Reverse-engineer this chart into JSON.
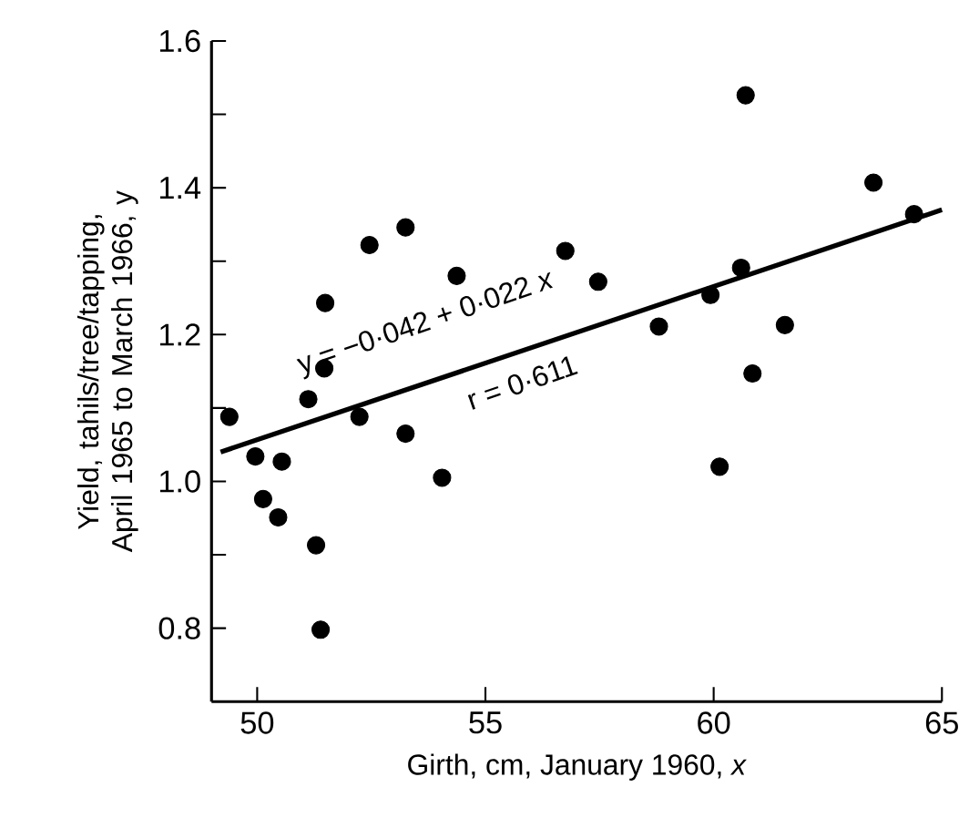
{
  "chart_data": {
    "type": "scatter",
    "xlabel": "Girth, cm, January 1960, *x*",
    "ylabel": "Yield, tahils/tree/tapping, April 1965 to March 1966, y",
    "xlim": [
      49,
      65
    ],
    "ylim": [
      0.7,
      1.6
    ],
    "xticks": [
      50,
      55,
      60,
      65
    ],
    "yticks": [
      {
        "value": 0.8,
        "label": "0.8"
      },
      {
        "value": 0.9,
        "label": null
      },
      {
        "value": 1.0,
        "label": "1.0"
      },
      {
        "value": 1.1,
        "label": null
      },
      {
        "value": 1.2,
        "label": "1.2"
      },
      {
        "value": 1.3,
        "label": null
      },
      {
        "value": 1.4,
        "label": "1.4"
      },
      {
        "value": 1.5,
        "label": null
      },
      {
        "value": 1.6,
        "label": "1.6"
      }
    ],
    "grid": false,
    "marker": "circle",
    "series": [
      {
        "color": "#000000",
        "x": [
          49.39,
          49.96,
          50.13,
          50.46,
          50.54,
          51.12,
          51.29,
          51.39,
          51.47,
          51.49,
          52.24,
          52.46,
          53.25,
          53.25,
          54.05,
          54.37,
          56.75,
          57.47,
          58.8,
          59.93,
          60.13,
          60.6,
          60.7,
          60.85,
          61.56,
          63.5,
          64.39
        ],
        "values": [
          1.088,
          1.034,
          0.976,
          0.951,
          1.027,
          1.112,
          0.913,
          0.798,
          1.154,
          1.243,
          1.088,
          1.322,
          1.346,
          1.065,
          1.005,
          1.28,
          1.314,
          1.272,
          1.211,
          1.254,
          1.02,
          1.291,
          1.526,
          1.147,
          1.213,
          1.407,
          1.364
        ]
      },
      {
        "type": "line",
        "color": "#000000",
        "marker": "none",
        "x": [
          49.2,
          65
        ],
        "values": [
          1.04,
          1.37
        ]
      }
    ],
    "annotations": [
      "y = −0·042 + 0·022 *x*",
      "r = 0·611"
    ]
  }
}
